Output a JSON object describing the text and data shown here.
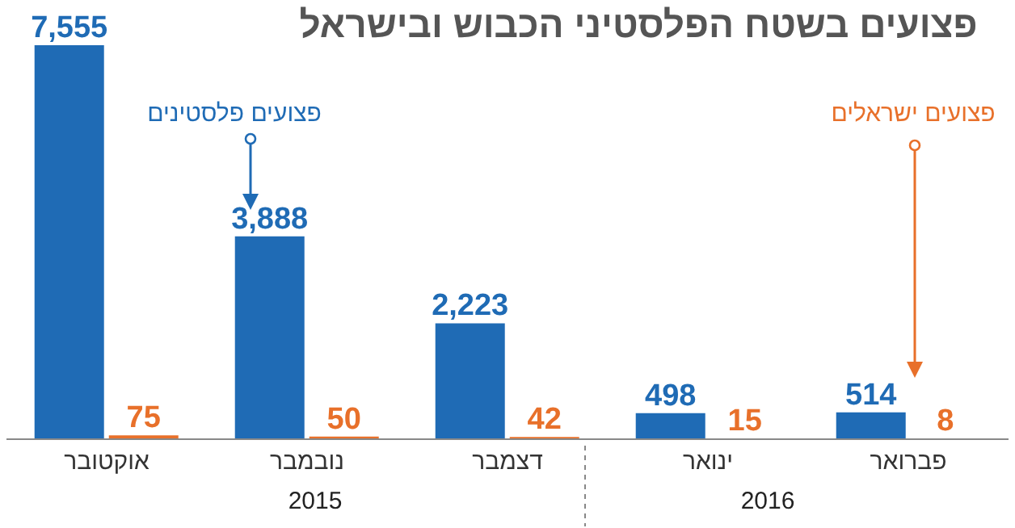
{
  "chart_data": {
    "type": "bar",
    "title": "פצועים בשטח הפלסטיני הכבוש ובישראל",
    "categories": [
      "אוקטובר",
      "נובמבר",
      "דצמבר",
      "ינואר",
      "פברואר"
    ],
    "series": [
      {
        "name": "פצועים פלסטינים",
        "color": "#1f6bb5",
        "values": [
          7555,
          3888,
          2223,
          498,
          514
        ],
        "value_labels": [
          "7,555",
          "3,888",
          "2,223",
          "498",
          "514"
        ]
      },
      {
        "name": "פצועים ישראלים",
        "color": "#e8702a",
        "values": [
          75,
          50,
          42,
          15,
          8
        ]
      }
    ],
    "annotations": [
      "2015",
      "2016"
    ],
    "data_labels": true
  }
}
